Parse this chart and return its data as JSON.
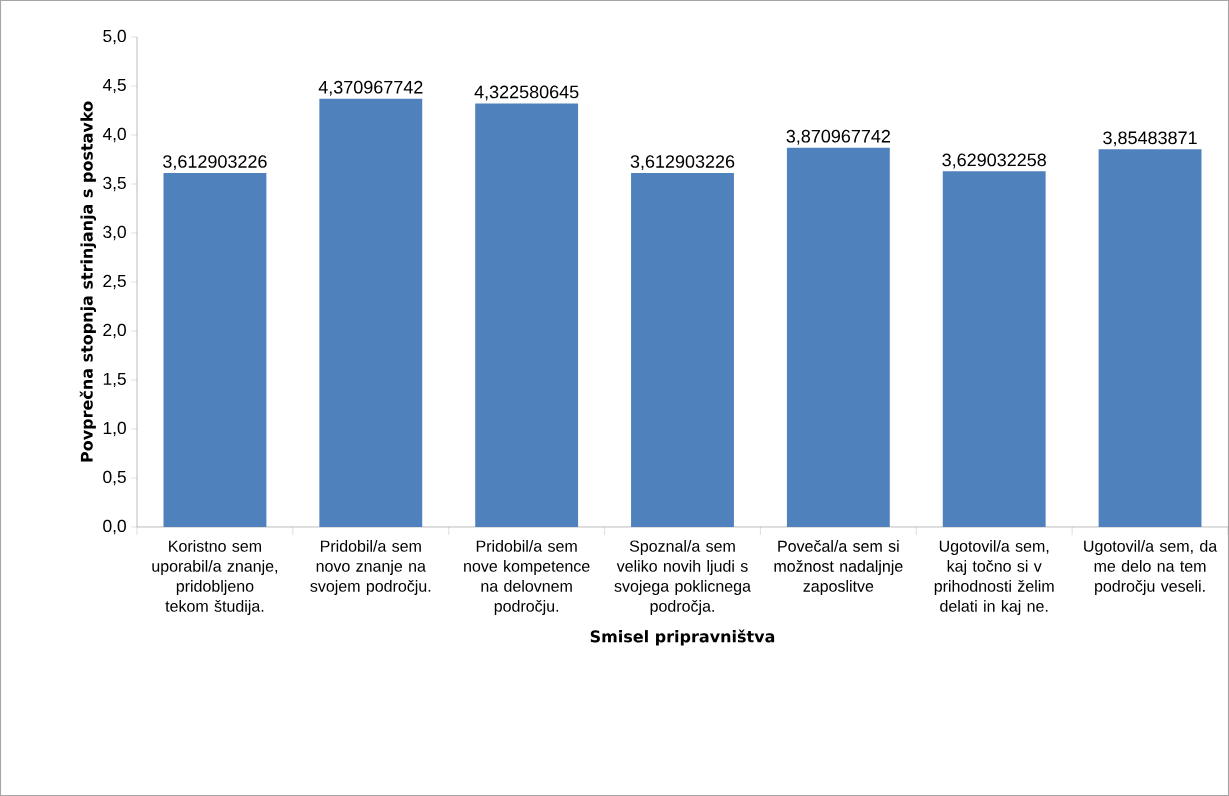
{
  "chart_data": {
    "type": "bar",
    "xlabel": "Smisel pripravništva",
    "ylabel": "Povprečna stopnja strinjanja s postavko",
    "categories": [
      "Koristno sem uporabil/a znanje, pridobljeno tekom študija.",
      "Pridobil/a sem novo znanje na svojem področju.",
      "Pridobil/a sem nove kompetence na delovnem področju.",
      "Spoznal/a sem veliko novih ljudi s svojega poklicnega področja.",
      "Povečal/a sem si možnost nadaljnje zaposlitve",
      "Ugotovil/a sem, kaj točno si v prihodnosti želim delati in kaj ne.",
      "Ugotovil/a sem, da me delo na tem področju veseli."
    ],
    "values": [
      3.612903226,
      4.370967742,
      4.322580645,
      3.612903226,
      3.870967742,
      3.629032258,
      3.85483871
    ],
    "value_labels": [
      "3,612903226",
      "4,370967742",
      "4,322580645",
      "3,612903226",
      "3,870967742",
      "3,629032258",
      "3,85483871"
    ],
    "color": "#4f81bd",
    "ylim": [
      0,
      5
    ],
    "yticks": [
      {
        "value": 0,
        "label": "0,0"
      },
      {
        "value": 0.5,
        "label": "0,5"
      },
      {
        "value": 1,
        "label": "1,0"
      },
      {
        "value": 1.5,
        "label": "1,5"
      },
      {
        "value": 2,
        "label": "2,0"
      },
      {
        "value": 2.5,
        "label": "2,5"
      },
      {
        "value": 3,
        "label": "3,0"
      },
      {
        "value": 3.5,
        "label": "3,5"
      },
      {
        "value": 4,
        "label": "4,0"
      },
      {
        "value": 4.5,
        "label": "4,5"
      },
      {
        "value": 5,
        "label": "5,0"
      }
    ],
    "grid": false
  }
}
